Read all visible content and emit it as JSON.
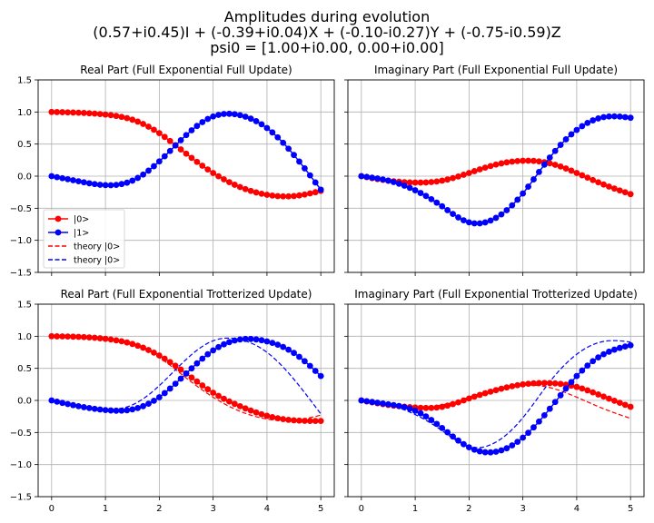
{
  "figure": {
    "title_lines": [
      "Amplitudes during evolution",
      "(0.57+i0.45)I + (-0.39+i0.04)X + (-0.10-i0.27)Y + (-0.75-i0.59)Z",
      "psi0 = [1.00+i0.00, 0.00+i0.00]"
    ]
  },
  "colors": {
    "series0": "#ff0000",
    "series1": "#0000ff",
    "grid": "#b0b0b0",
    "axis": "#000000"
  },
  "chart_data": [
    {
      "type": "line",
      "title": "Real Part (Full Exponential Full Update)",
      "xlim": [
        -0.25,
        5.25
      ],
      "ylim": [
        -1.5,
        1.5
      ],
      "xticks": [
        0,
        1,
        2,
        3,
        4,
        5
      ],
      "yticks": [
        -1.5,
        -1.0,
        -0.5,
        0.0,
        0.5,
        1.0,
        1.5
      ],
      "ytick_labels": [
        "−1.5",
        "−1.0",
        "−0.5",
        "0.0",
        "0.5",
        "1.0",
        "1.5"
      ],
      "show_yticklabels": true,
      "grid": true,
      "legend": {
        "loc": "lower-left",
        "entries": [
          "|0>",
          "|1>",
          "theory |0>",
          "theory |0>"
        ]
      },
      "sim_knots": [
        {
          "name": "|0>",
          "color": "#ff0000",
          "style": "marker-line",
          "x": [
            0,
            1,
            1.5,
            2,
            2.5,
            3,
            3.5,
            4,
            4.5,
            5
          ],
          "y": [
            1.0,
            0.96,
            0.88,
            0.67,
            0.35,
            0.05,
            -0.17,
            -0.29,
            -0.31,
            -0.23
          ]
        },
        {
          "name": "|1>",
          "color": "#0000ff",
          "style": "marker-line",
          "x": [
            0,
            0.5,
            1,
            1.5,
            2,
            2.5,
            3,
            3.5,
            4,
            4.5,
            5
          ],
          "y": [
            0.0,
            -0.08,
            -0.14,
            -0.07,
            0.23,
            0.64,
            0.93,
            0.95,
            0.75,
            0.33,
            -0.21
          ]
        }
      ],
      "theory_knots": [
        {
          "name": "theory |0>",
          "color": "#ff0000",
          "x": [
            0,
            1,
            1.5,
            2,
            2.5,
            3,
            3.5,
            4,
            4.5,
            5
          ],
          "y": [
            1.0,
            0.96,
            0.88,
            0.67,
            0.35,
            0.05,
            -0.17,
            -0.29,
            -0.31,
            -0.23
          ]
        },
        {
          "name": "theory |0>",
          "color": "#0000ff",
          "x": [
            0,
            0.5,
            1,
            1.5,
            2,
            2.5,
            3,
            3.5,
            4,
            4.5,
            5
          ],
          "y": [
            0.0,
            -0.08,
            -0.14,
            -0.07,
            0.23,
            0.64,
            0.93,
            0.95,
            0.75,
            0.33,
            -0.21
          ]
        }
      ]
    },
    {
      "type": "line",
      "title": "Imaginary Part (Full Exponential Full Update)",
      "xlim": [
        -0.25,
        5.25
      ],
      "ylim": [
        -1.5,
        1.5
      ],
      "xticks": [
        0,
        1,
        2,
        3,
        4,
        5
      ],
      "yticks": [
        -1.5,
        -1.0,
        -0.5,
        0.0,
        0.5,
        1.0,
        1.5
      ],
      "show_yticklabels": false,
      "grid": true,
      "sim_knots": [
        {
          "name": "|0>",
          "color": "#ff0000",
          "style": "marker-line",
          "x": [
            0,
            0.5,
            1,
            1.5,
            2,
            2.5,
            3,
            3.5,
            4,
            4.5,
            5
          ],
          "y": [
            0.0,
            -0.07,
            -0.1,
            -0.07,
            0.05,
            0.18,
            0.24,
            0.2,
            0.05,
            -0.13,
            -0.28
          ]
        },
        {
          "name": "|1>",
          "color": "#0000ff",
          "style": "marker-line",
          "x": [
            0,
            0.5,
            1,
            1.5,
            2,
            2.5,
            3,
            3.5,
            4,
            4.5,
            5
          ],
          "y": [
            0.0,
            -0.07,
            -0.22,
            -0.47,
            -0.72,
            -0.65,
            -0.27,
            0.29,
            0.72,
            0.92,
            0.91
          ]
        }
      ],
      "theory_knots": [
        {
          "name": "theory |0>",
          "color": "#ff0000",
          "x": [
            0,
            0.5,
            1,
            1.5,
            2,
            2.5,
            3,
            3.5,
            4,
            4.5,
            5
          ],
          "y": [
            0.0,
            -0.07,
            -0.1,
            -0.07,
            0.05,
            0.18,
            0.24,
            0.2,
            0.05,
            -0.13,
            -0.28
          ]
        },
        {
          "name": "theory |0>",
          "color": "#0000ff",
          "x": [
            0,
            0.5,
            1,
            1.5,
            2,
            2.5,
            3,
            3.5,
            4,
            4.5,
            5
          ],
          "y": [
            0.0,
            -0.07,
            -0.22,
            -0.47,
            -0.72,
            -0.65,
            -0.27,
            0.29,
            0.72,
            0.92,
            0.91
          ]
        }
      ]
    },
    {
      "type": "line",
      "title": "Real Part (Full Exponential Trotterized Update)",
      "xlim": [
        -0.25,
        5.25
      ],
      "ylim": [
        -1.5,
        1.5
      ],
      "xticks": [
        0,
        1,
        2,
        3,
        4,
        5
      ],
      "xtick_labels": [
        "0",
        "1",
        "2",
        "3",
        "4",
        "5"
      ],
      "yticks": [
        -1.5,
        -1.0,
        -0.5,
        0.0,
        0.5,
        1.0,
        1.5
      ],
      "ytick_labels": [
        "−1.5",
        "−1.0",
        "−0.5",
        "0.0",
        "0.5",
        "1.0",
        "1.5"
      ],
      "show_yticklabels": true,
      "show_xticklabels": true,
      "grid": true,
      "sim_knots": [
        {
          "name": "|0>",
          "color": "#ff0000",
          "style": "marker-line",
          "x": [
            0,
            1,
            1.5,
            2,
            2.5,
            3,
            3.5,
            4,
            4.5,
            5
          ],
          "y": [
            1.0,
            0.96,
            0.88,
            0.7,
            0.42,
            0.12,
            -0.09,
            -0.24,
            -0.31,
            -0.32
          ]
        },
        {
          "name": "|1>",
          "color": "#0000ff",
          "style": "marker-line",
          "x": [
            0,
            0.5,
            1,
            1.5,
            2,
            2.5,
            3,
            3.5,
            4,
            4.5,
            5
          ],
          "y": [
            0.0,
            -0.09,
            -0.15,
            -0.14,
            0.05,
            0.42,
            0.78,
            0.95,
            0.92,
            0.74,
            0.38
          ]
        }
      ],
      "theory_knots": [
        {
          "name": "theory |0>",
          "color": "#ff0000",
          "x": [
            0,
            1,
            1.5,
            2,
            2.5,
            3,
            3.5,
            4,
            4.5,
            5
          ],
          "y": [
            1.0,
            0.96,
            0.88,
            0.67,
            0.35,
            0.05,
            -0.17,
            -0.29,
            -0.31,
            -0.23
          ]
        },
        {
          "name": "theory |0>",
          "color": "#0000ff",
          "x": [
            0,
            0.5,
            1,
            1.5,
            2,
            2.5,
            3,
            3.5,
            4,
            4.5,
            5
          ],
          "y": [
            0.0,
            -0.08,
            -0.14,
            -0.07,
            0.23,
            0.64,
            0.93,
            0.95,
            0.75,
            0.33,
            -0.21
          ]
        }
      ]
    },
    {
      "type": "line",
      "title": "Imaginary Part (Full Exponential Trotterized Update)",
      "xlim": [
        -0.25,
        5.25
      ],
      "ylim": [
        -1.5,
        1.5
      ],
      "xticks": [
        0,
        1,
        2,
        3,
        4,
        5
      ],
      "xtick_labels": [
        "0",
        "1",
        "2",
        "3",
        "4",
        "5"
      ],
      "yticks": [
        -1.5,
        -1.0,
        -0.5,
        0.0,
        0.5,
        1.0,
        1.5
      ],
      "show_yticklabels": false,
      "show_xticklabels": true,
      "grid": true,
      "sim_knots": [
        {
          "name": "|0>",
          "color": "#ff0000",
          "style": "marker-line",
          "x": [
            0,
            0.5,
            1,
            1.5,
            2,
            2.5,
            3,
            3.5,
            4,
            4.5,
            5
          ],
          "y": [
            0.0,
            -0.07,
            -0.11,
            -0.1,
            0.03,
            0.16,
            0.25,
            0.27,
            0.21,
            0.06,
            -0.1
          ]
        },
        {
          "name": "|1>",
          "color": "#0000ff",
          "style": "marker-line",
          "x": [
            0,
            0.5,
            1,
            1.5,
            2,
            2.5,
            3,
            3.5,
            4,
            4.5,
            5
          ],
          "y": [
            0.0,
            -0.06,
            -0.16,
            -0.43,
            -0.73,
            -0.8,
            -0.58,
            -0.13,
            0.38,
            0.72,
            0.86
          ]
        }
      ],
      "theory_knots": [
        {
          "name": "theory |0>",
          "color": "#ff0000",
          "x": [
            0,
            0.5,
            1,
            1.5,
            2,
            2.5,
            3,
            3.5,
            4,
            4.5,
            5
          ],
          "y": [
            0.0,
            -0.07,
            -0.1,
            -0.07,
            0.05,
            0.18,
            0.24,
            0.2,
            0.05,
            -0.13,
            -0.28
          ]
        },
        {
          "name": "theory |0>",
          "color": "#0000ff",
          "x": [
            0,
            0.5,
            1,
            1.5,
            2,
            2.5,
            3,
            3.5,
            4,
            4.5,
            5
          ],
          "y": [
            0.0,
            -0.07,
            -0.22,
            -0.47,
            -0.72,
            -0.65,
            -0.27,
            0.29,
            0.72,
            0.92,
            0.91
          ]
        }
      ]
    }
  ]
}
